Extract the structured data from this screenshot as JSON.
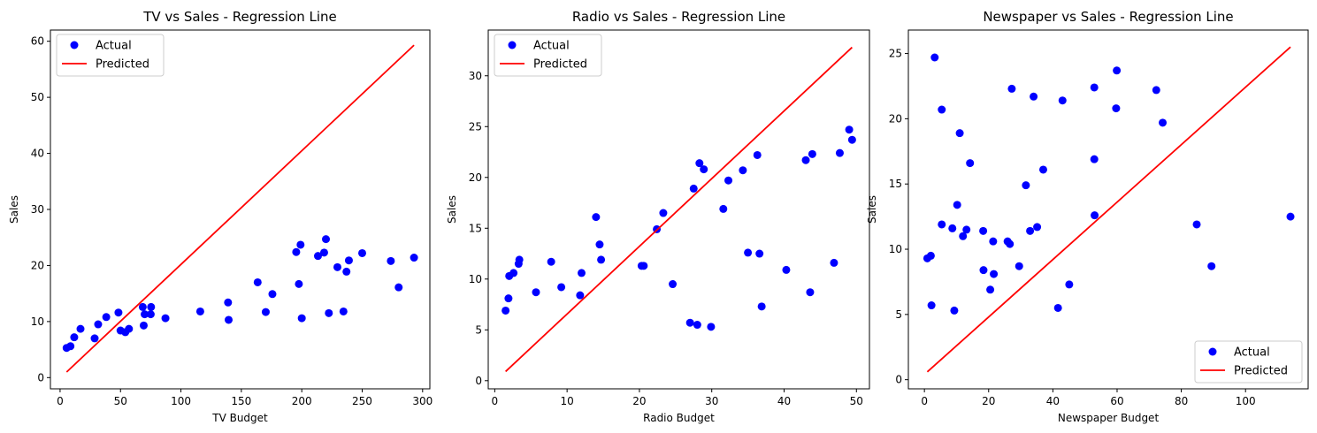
{
  "chart_data": [
    {
      "type": "scatter",
      "title": "TV vs Sales - Regression Line",
      "xlabel": "TV Budget",
      "ylabel": "Sales",
      "xlim": [
        -8,
        306
      ],
      "ylim": [
        -2,
        62
      ],
      "xticks": [
        0,
        50,
        100,
        150,
        200,
        250,
        300
      ],
      "yticks": [
        0,
        10,
        20,
        30,
        40,
        50,
        60
      ],
      "legend_position": "upper-left",
      "series": [
        {
          "name": "Actual",
          "kind": "scatter",
          "color": "#0000ff",
          "points": [
            [
              5.4,
              5.3
            ],
            [
              8.6,
              5.6
            ],
            [
              11.7,
              7.2
            ],
            [
              16.9,
              8.7
            ],
            [
              28.6,
              7.0
            ],
            [
              31.5,
              9.5
            ],
            [
              38.2,
              10.8
            ],
            [
              48.3,
              11.6
            ],
            [
              50.0,
              8.4
            ],
            [
              54.0,
              8.1
            ],
            [
              57.0,
              8.7
            ],
            [
              68.4,
              12.6
            ],
            [
              69.2,
              9.3
            ],
            [
              70.0,
              11.3
            ],
            [
              75.0,
              11.3
            ],
            [
              75.3,
              12.6
            ],
            [
              87.2,
              10.6
            ],
            [
              116.0,
              11.8
            ],
            [
              139.0,
              13.4
            ],
            [
              139.5,
              10.3
            ],
            [
              163.5,
              17.0
            ],
            [
              170.2,
              11.7
            ],
            [
              175.7,
              14.9
            ],
            [
              195.4,
              22.4
            ],
            [
              197.6,
              16.7
            ],
            [
              199.0,
              23.7
            ],
            [
              200.0,
              10.6
            ],
            [
              213.4,
              21.7
            ],
            [
              218.5,
              22.3
            ],
            [
              220.0,
              24.7
            ],
            [
              222.4,
              11.5
            ],
            [
              229.5,
              19.7
            ],
            [
              234.5,
              11.8
            ],
            [
              237.0,
              18.9
            ],
            [
              239.0,
              20.9
            ],
            [
              250.0,
              22.2
            ],
            [
              273.7,
              20.8
            ],
            [
              280.2,
              16.1
            ],
            [
              292.9,
              21.4
            ]
          ]
        },
        {
          "name": "Predicted",
          "kind": "line",
          "color": "#ff0000",
          "points": [
            [
              5.4,
              1.0
            ],
            [
              292.9,
              59.3
            ]
          ]
        }
      ]
    },
    {
      "type": "scatter",
      "title": "Radio vs Sales - Regression Line",
      "xlabel": "Radio Budget",
      "ylabel": "Sales",
      "xlim": [
        -0.9,
        51.8
      ],
      "ylim": [
        -0.8,
        34.5
      ],
      "xticks": [
        0,
        10,
        20,
        30,
        40,
        50
      ],
      "yticks": [
        0,
        5,
        10,
        15,
        20,
        25,
        30
      ],
      "legend_position": "upper-left",
      "series": [
        {
          "name": "Actual",
          "kind": "scatter",
          "color": "#0000ff",
          "points": [
            [
              1.5,
              6.9
            ],
            [
              1.9,
              8.1
            ],
            [
              2.0,
              10.3
            ],
            [
              2.6,
              10.6
            ],
            [
              3.3,
              11.5
            ],
            [
              3.4,
              11.9
            ],
            [
              5.7,
              8.7
            ],
            [
              7.8,
              11.7
            ],
            [
              9.2,
              9.2
            ],
            [
              11.8,
              8.4
            ],
            [
              12.0,
              10.6
            ],
            [
              14.0,
              16.1
            ],
            [
              14.5,
              13.4
            ],
            [
              14.7,
              11.9
            ],
            [
              20.3,
              11.3
            ],
            [
              20.6,
              11.3
            ],
            [
              22.4,
              14.9
            ],
            [
              23.3,
              16.5
            ],
            [
              24.6,
              9.5
            ],
            [
              27.0,
              5.7
            ],
            [
              27.5,
              18.9
            ],
            [
              28.0,
              5.5
            ],
            [
              28.3,
              21.4
            ],
            [
              28.9,
              20.8
            ],
            [
              29.9,
              5.3
            ],
            [
              31.6,
              16.9
            ],
            [
              32.3,
              19.7
            ],
            [
              34.3,
              20.7
            ],
            [
              35.0,
              12.6
            ],
            [
              36.3,
              22.2
            ],
            [
              36.6,
              12.5
            ],
            [
              36.9,
              7.3
            ],
            [
              40.3,
              10.9
            ],
            [
              43.0,
              21.7
            ],
            [
              43.6,
              8.7
            ],
            [
              43.9,
              22.3
            ],
            [
              46.9,
              11.6
            ],
            [
              47.7,
              22.4
            ],
            [
              49.0,
              24.7
            ],
            [
              49.4,
              23.7
            ]
          ]
        },
        {
          "name": "Predicted",
          "kind": "line",
          "color": "#ff0000",
          "points": [
            [
              1.5,
              0.9
            ],
            [
              49.4,
              32.8
            ]
          ]
        }
      ]
    },
    {
      "type": "scatter",
      "title": "Newspaper vs Sales - Regression Line",
      "xlabel": "Newspaper Budget",
      "ylabel": "Sales",
      "xlim": [
        -5.0,
        119.5
      ],
      "ylim": [
        -0.7,
        26.8
      ],
      "xticks": [
        0,
        20,
        40,
        60,
        80,
        100
      ],
      "yticks": [
        0,
        5,
        10,
        15,
        20,
        25
      ],
      "legend_position": "lower-right",
      "series": [
        {
          "name": "Actual",
          "kind": "scatter",
          "color": "#0000ff",
          "points": [
            [
              0.9,
              9.3
            ],
            [
              2.0,
              9.5
            ],
            [
              2.2,
              5.7
            ],
            [
              3.2,
              24.7
            ],
            [
              5.4,
              20.7
            ],
            [
              5.4,
              11.9
            ],
            [
              8.7,
              11.6
            ],
            [
              9.3,
              5.3
            ],
            [
              10.2,
              13.4
            ],
            [
              11.0,
              18.9
            ],
            [
              12.0,
              11.0
            ],
            [
              13.1,
              11.5
            ],
            [
              14.2,
              16.6
            ],
            [
              18.3,
              11.4
            ],
            [
              18.4,
              8.4
            ],
            [
              20.5,
              6.9
            ],
            [
              21.4,
              10.6
            ],
            [
              21.6,
              8.1
            ],
            [
              25.9,
              10.6
            ],
            [
              26.6,
              10.4
            ],
            [
              27.2,
              22.3
            ],
            [
              29.5,
              8.7
            ],
            [
              31.6,
              14.9
            ],
            [
              32.9,
              11.4
            ],
            [
              34.0,
              21.7
            ],
            [
              35.1,
              11.7
            ],
            [
              37.0,
              16.1
            ],
            [
              41.6,
              5.5
            ],
            [
              43.0,
              21.4
            ],
            [
              45.1,
              7.3
            ],
            [
              52.9,
              22.4
            ],
            [
              52.9,
              16.9
            ],
            [
              53.0,
              12.6
            ],
            [
              59.7,
              20.8
            ],
            [
              59.9,
              23.7
            ],
            [
              72.2,
              22.2
            ],
            [
              74.2,
              19.7
            ],
            [
              84.8,
              11.9
            ],
            [
              89.4,
              8.7
            ],
            [
              114.0,
              12.5
            ]
          ]
        },
        {
          "name": "Predicted",
          "kind": "line",
          "color": "#ff0000",
          "points": [
            [
              0.9,
              0.6
            ],
            [
              114.0,
              25.5
            ]
          ]
        }
      ]
    }
  ]
}
